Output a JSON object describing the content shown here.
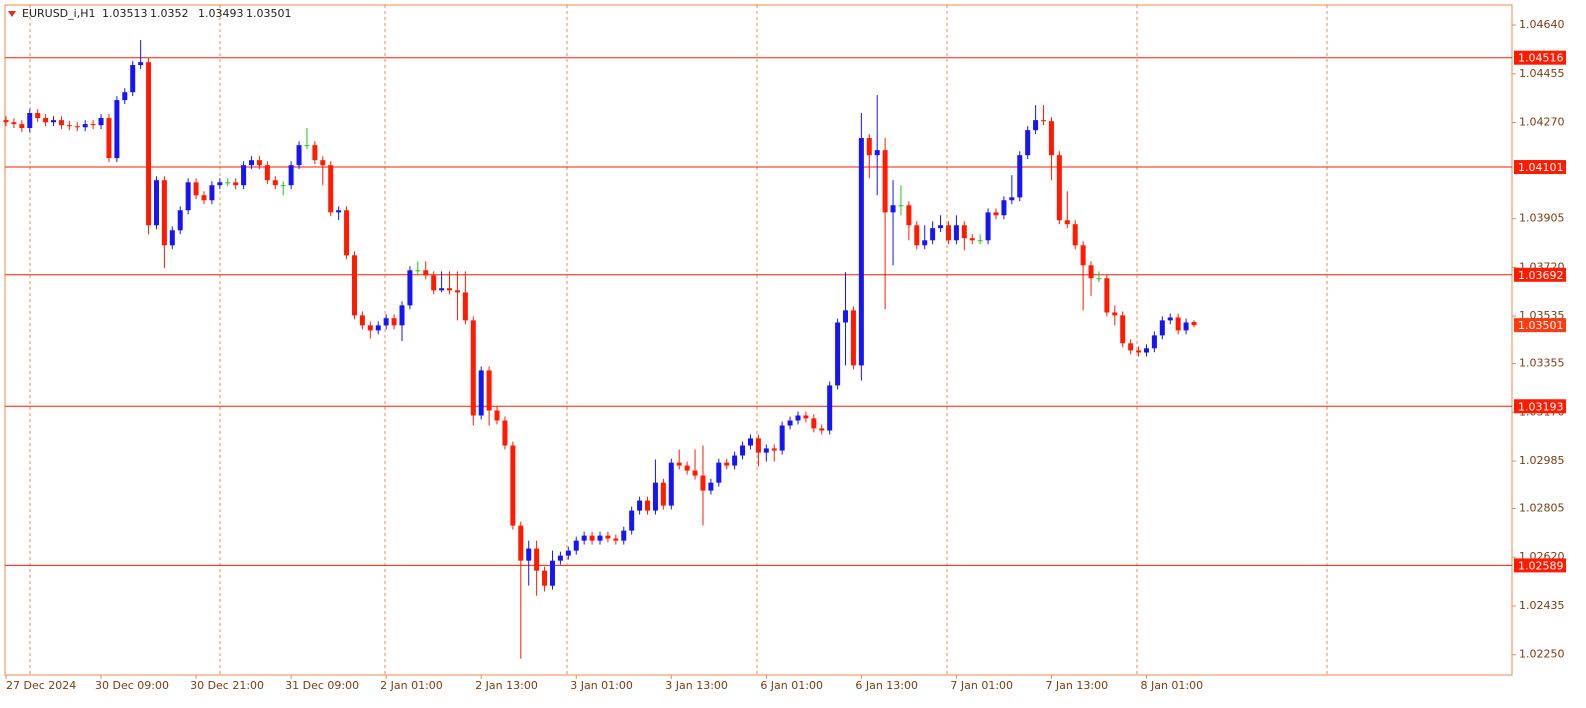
{
  "chart_data": {
    "type": "candlestick",
    "symbol": "EURUSD_i,H1",
    "up_color": "#1515f5",
    "down_color": "#ff1a00",
    "doji_color": "#1ec81e",
    "level_color": "#ff1a00",
    "grid": true,
    "ylim": [
      1.02173,
      1.04716
    ],
    "yticks": [
      {
        "value": 1.0464,
        "label": "1.04640"
      },
      {
        "value": 1.04455,
        "label": "1.04455"
      },
      {
        "value": 1.0427,
        "label": "1.04270"
      },
      {
        "value": 1.03905,
        "label": "1.03905"
      },
      {
        "value": 1.0372,
        "label": "1.03720"
      },
      {
        "value": 1.03535,
        "label": "1.03535"
      },
      {
        "value": 1.03355,
        "label": "1.03355"
      },
      {
        "value": 1.0317,
        "label": "1.03170"
      },
      {
        "value": 1.02985,
        "label": "1.02985"
      },
      {
        "value": 1.02805,
        "label": "1.02805"
      },
      {
        "value": 1.0262,
        "label": "1.02620"
      },
      {
        "value": 1.02435,
        "label": "1.02435"
      },
      {
        "value": 1.0225,
        "label": "1.02250"
      }
    ],
    "levels": [
      1.04516,
      1.04101,
      1.03692,
      1.03193,
      1.02589
    ],
    "categories": [
      "27 Dec 2024",
      null,
      null,
      null,
      null,
      null,
      null,
      null,
      null,
      null,
      null,
      null,
      "30 Dec 09:00",
      null,
      null,
      null,
      null,
      null,
      null,
      null,
      null,
      null,
      null,
      null,
      "30 Dec 21:00",
      null,
      null,
      null,
      null,
      null,
      null,
      null,
      null,
      null,
      null,
      null,
      "31 Dec 09:00",
      null,
      null,
      null,
      null,
      null,
      null,
      null,
      null,
      null,
      null,
      null,
      "2 Jan 01:00",
      null,
      null,
      null,
      null,
      null,
      null,
      null,
      null,
      null,
      null,
      null,
      "2 Jan 13:00",
      null,
      null,
      null,
      null,
      null,
      null,
      null,
      null,
      null,
      null,
      null,
      "3 Jan 01:00",
      null,
      null,
      null,
      null,
      null,
      null,
      null,
      null,
      null,
      null,
      null,
      "3 Jan 13:00",
      null,
      null,
      null,
      null,
      null,
      null,
      null,
      null,
      null,
      null,
      null,
      "6 Jan 01:00",
      null,
      null,
      null,
      null,
      null,
      null,
      null,
      null,
      null,
      null,
      null,
      "6 Jan 13:00",
      null,
      null,
      null,
      null,
      null,
      null,
      null,
      null,
      null,
      null,
      null,
      "7 Jan 01:00",
      null,
      null,
      null,
      null,
      null,
      null,
      null,
      null,
      null,
      null,
      null,
      "7 Jan 13:00",
      null,
      null,
      null,
      null,
      null,
      null,
      null,
      null,
      null,
      null,
      null,
      "8 Jan 01:00",
      null,
      null,
      null,
      null,
      null,
      null
    ],
    "open": [
      1.04279,
      1.04271,
      1.04264,
      1.04249,
      1.04306,
      1.04287,
      1.04271,
      1.04279,
      1.0426,
      1.04256,
      1.04252,
      1.04264,
      1.0426,
      1.04287,
      1.04135,
      1.04355,
      1.04385,
      1.04488,
      1.04499,
      1.0388,
      1.04051,
      1.03804,
      1.03861,
      1.03937,
      1.04043,
      1.03994,
      1.03975,
      1.04032,
      1.04043,
      1.04043,
      1.04032,
      1.04108,
      1.04127,
      1.04108,
      1.04051,
      1.04032,
      1.04032,
      1.04108,
      1.04184,
      1.04184,
      1.04127,
      1.04108,
      1.03929,
      1.03937,
      1.03766,
      1.03538,
      1.035,
      1.03481,
      1.035,
      1.03527,
      1.035,
      1.03576,
      1.03709,
      1.03709,
      1.0369,
      1.03633,
      1.03641,
      1.03633,
      1.03625,
      1.03519,
      1.03158,
      1.03329,
      1.03177,
      1.03139,
      1.03044,
      1.0274,
      1.02607,
      1.02653,
      1.02569,
      1.02512,
      1.02607,
      1.02626,
      1.02645,
      1.02683,
      1.02702,
      1.02683,
      1.02702,
      1.02691,
      1.02683,
      1.02721,
      1.02797,
      1.02835,
      1.02797,
      1.02903,
      1.02816,
      1.02979,
      1.02968,
      1.02949,
      1.0293,
      1.02873,
      1.02903,
      1.02979,
      1.02968,
      1.03006,
      1.03044,
      1.03071,
      1.03017,
      1.03033,
      1.03025,
      1.0312,
      1.03139,
      1.03158,
      1.03147,
      1.03109,
      1.03101,
      1.03272,
      1.03511,
      1.03557,
      1.03348,
      1.04211,
      1.04146,
      1.04165,
      1.03929,
      1.03956,
      1.03956,
      1.0388,
      1.03804,
      1.03823,
      1.03869,
      1.0388,
      1.03823,
      1.0388,
      1.03831,
      1.03823,
      1.03823,
      1.03929,
      1.03918,
      1.03975,
      1.03986,
      1.04146,
      1.04241,
      1.04279,
      1.04275,
      1.04146,
      1.03899,
      1.03884,
      1.03804,
      1.03728,
      1.03679,
      1.03679,
      1.03549,
      1.03538,
      1.03432,
      1.03405,
      1.03397,
      1.03413,
      1.03462,
      1.03519,
      1.0353,
      1.03481,
      1.03513
    ],
    "high": [
      1.04294,
      1.04286,
      1.04279,
      1.04321,
      1.04321,
      1.04302,
      1.04294,
      1.04294,
      1.04275,
      1.04271,
      1.04279,
      1.04279,
      1.04302,
      1.04302,
      1.0437,
      1.044,
      1.04503,
      1.04583,
      1.04514,
      1.04066,
      1.04066,
      1.03876,
      1.03952,
      1.04058,
      1.04058,
      1.04009,
      1.04047,
      1.04058,
      1.04058,
      1.04058,
      1.04123,
      1.04142,
      1.04142,
      1.04123,
      1.04066,
      1.04047,
      1.04123,
      1.04199,
      1.04249,
      1.04199,
      1.04142,
      1.04123,
      1.03952,
      1.03952,
      1.03781,
      1.03553,
      1.03515,
      1.03515,
      1.03542,
      1.03542,
      1.03591,
      1.03724,
      1.03743,
      1.03743,
      1.03705,
      1.03705,
      1.03705,
      1.03705,
      1.03705,
      1.03534,
      1.03344,
      1.03344,
      1.03192,
      1.03154,
      1.03059,
      1.02755,
      1.02683,
      1.02683,
      1.02584,
      1.02645,
      1.02641,
      1.0266,
      1.02698,
      1.02717,
      1.02717,
      1.02717,
      1.02717,
      1.02706,
      1.02736,
      1.02812,
      1.0285,
      1.0285,
      1.02991,
      1.02918,
      1.02994,
      1.03029,
      1.02983,
      1.03029,
      1.03044,
      1.02918,
      1.02994,
      1.02994,
      1.03021,
      1.03059,
      1.03086,
      1.03086,
      1.03048,
      1.03048,
      1.03135,
      1.03154,
      1.03173,
      1.03173,
      1.03162,
      1.03124,
      1.03287,
      1.03526,
      1.03702,
      1.03572,
      1.04306,
      1.04226,
      1.04374,
      1.04211,
      1.04051,
      1.04032,
      1.03971,
      1.03895,
      1.0388,
      1.03895,
      1.03918,
      1.03895,
      1.03918,
      1.03895,
      1.03846,
      1.03846,
      1.03944,
      1.03944,
      1.0399,
      1.0407,
      1.04161,
      1.04256,
      1.04336,
      1.04336,
      1.0429,
      1.04161,
      1.04009,
      1.03899,
      1.03819,
      1.03743,
      1.03705,
      1.03694,
      1.03576,
      1.03553,
      1.03447,
      1.0342,
      1.03428,
      1.03477,
      1.03534,
      1.03545,
      1.03545,
      1.03526,
      1.0352
    ],
    "low": [
      1.04256,
      1.04249,
      1.04234,
      1.04234,
      1.04272,
      1.04256,
      1.04256,
      1.04245,
      1.04241,
      1.04237,
      1.04237,
      1.04245,
      1.04245,
      1.0412,
      1.0412,
      1.0434,
      1.0437,
      1.04473,
      1.03845,
      1.03865,
      1.03717,
      1.03789,
      1.03846,
      1.03922,
      1.03979,
      1.0396,
      1.0396,
      1.04017,
      1.04028,
      1.04017,
      1.04017,
      1.04093,
      1.04093,
      1.04036,
      1.04017,
      1.03994,
      1.04017,
      1.04093,
      1.04169,
      1.04112,
      1.04032,
      1.03914,
      1.039,
      1.03751,
      1.03523,
      1.03485,
      1.0345,
      1.03466,
      1.03485,
      1.03485,
      1.0344,
      1.03561,
      1.03694,
      1.03675,
      1.03618,
      1.03626,
      1.03618,
      1.03519,
      1.03504,
      1.0312,
      1.03143,
      1.0312,
      1.03124,
      1.03029,
      1.02725,
      1.02235,
      1.02512,
      1.02474,
      1.0249,
      1.02497,
      1.02592,
      1.02611,
      1.0263,
      1.02668,
      1.02668,
      1.02668,
      1.02676,
      1.02668,
      1.02668,
      1.02706,
      1.02782,
      1.02782,
      1.02782,
      1.02801,
      1.02801,
      1.02953,
      1.02934,
      1.02915,
      1.0274,
      1.02858,
      1.02888,
      1.02953,
      1.02953,
      1.02991,
      1.03029,
      1.02964,
      1.02983,
      1.02983,
      1.0301,
      1.03105,
      1.03124,
      1.03132,
      1.03094,
      1.03086,
      1.03086,
      1.03257,
      1.03348,
      1.03333,
      1.03291,
      1.04058,
      1.03994,
      1.03561,
      1.03728,
      1.03918,
      1.03823,
      1.03789,
      1.03789,
      1.03808,
      1.03854,
      1.03808,
      1.03808,
      1.03785,
      1.03808,
      1.03808,
      1.03808,
      1.03903,
      1.03903,
      1.0396,
      1.03971,
      1.04131,
      1.04226,
      1.0426,
      1.04051,
      1.03884,
      1.03869,
      1.03789,
      1.03557,
      1.03611,
      1.03664,
      1.03534,
      1.035,
      1.03417,
      1.0339,
      1.03382,
      1.03382,
      1.03398,
      1.03447,
      1.03504,
      1.03466,
      1.03466,
      1.03493
    ],
    "close": [
      1.04271,
      1.04264,
      1.04249,
      1.04306,
      1.04287,
      1.04271,
      1.04279,
      1.0426,
      1.04256,
      1.04252,
      1.04264,
      1.0426,
      1.04287,
      1.04135,
      1.04355,
      1.04385,
      1.04488,
      1.04499,
      1.0388,
      1.04051,
      1.03804,
      1.03861,
      1.03937,
      1.04043,
      1.03994,
      1.03975,
      1.04032,
      1.04043,
      1.04043,
      1.04032,
      1.04108,
      1.04127,
      1.04108,
      1.04051,
      1.04032,
      1.04032,
      1.04108,
      1.04184,
      1.04184,
      1.04127,
      1.04108,
      1.03929,
      1.03937,
      1.03766,
      1.03538,
      1.035,
      1.03481,
      1.035,
      1.03527,
      1.035,
      1.03576,
      1.03709,
      1.03709,
      1.0369,
      1.03633,
      1.03641,
      1.03633,
      1.03625,
      1.03519,
      1.03158,
      1.03329,
      1.03177,
      1.03139,
      1.03044,
      1.0274,
      1.02607,
      1.02653,
      1.02569,
      1.02512,
      1.02607,
      1.02626,
      1.02645,
      1.02683,
      1.02702,
      1.02683,
      1.02702,
      1.02691,
      1.02683,
      1.02721,
      1.02797,
      1.02835,
      1.02797,
      1.02903,
      1.02816,
      1.02979,
      1.02968,
      1.02949,
      1.0293,
      1.02873,
      1.02903,
      1.02979,
      1.02968,
      1.03006,
      1.03044,
      1.03071,
      1.03017,
      1.03033,
      1.03025,
      1.0312,
      1.03139,
      1.03158,
      1.03147,
      1.03109,
      1.03101,
      1.03272,
      1.03511,
      1.03557,
      1.03348,
      1.04211,
      1.04146,
      1.04165,
      1.03929,
      1.03956,
      1.03956,
      1.0388,
      1.03804,
      1.03823,
      1.03869,
      1.0388,
      1.03823,
      1.0388,
      1.03831,
      1.03823,
      1.03823,
      1.03929,
      1.03918,
      1.03975,
      1.03986,
      1.04146,
      1.04241,
      1.04279,
      1.04275,
      1.04146,
      1.03899,
      1.03884,
      1.03804,
      1.03728,
      1.03679,
      1.03679,
      1.03549,
      1.03538,
      1.03432,
      1.03405,
      1.03397,
      1.03413,
      1.03462,
      1.03519,
      1.0353,
      1.03481,
      1.03511,
      1.03501
    ]
  }
}
